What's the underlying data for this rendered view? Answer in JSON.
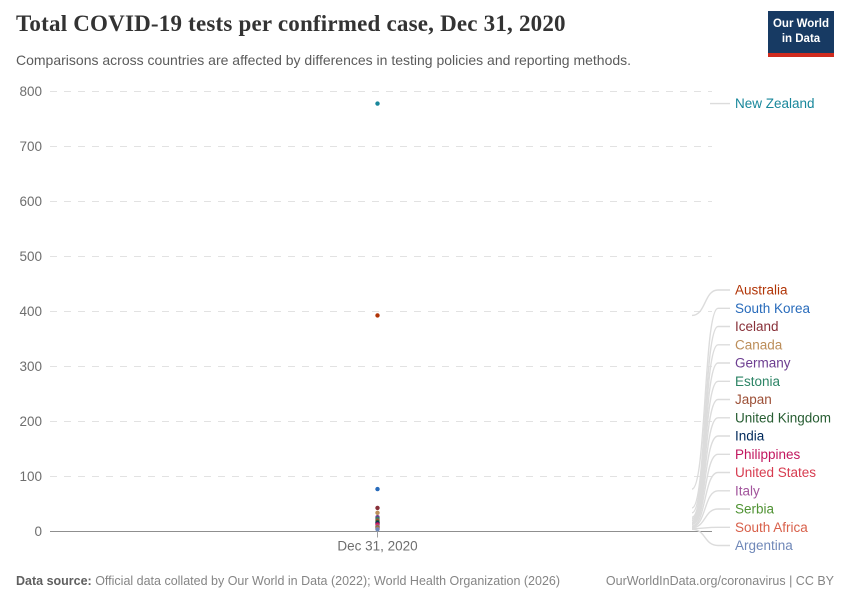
{
  "header": {
    "title": "Total COVID-19 tests per confirmed case, Dec 31, 2020",
    "subtitle": "Comparisons across countries are affected by differences in testing policies and reporting methods."
  },
  "logo": {
    "line1": "Our World",
    "line2": "in Data",
    "bg_color": "#173a63",
    "accent_color": "#d02b1e"
  },
  "footer": {
    "source_label": "Data source:",
    "source_text": " Official data collated by Our World in Data (2022); World Health Organization (2026)",
    "link_text": "OurWorldInData.org/coronavirus | CC BY"
  },
  "chart_data": {
    "type": "scatter",
    "title": "Total COVID-19 tests per confirmed case, Dec 31, 2020",
    "x_tick_label": "Dec 31, 2020",
    "xlabel": "",
    "ylabel": "",
    "ylim": [
      0,
      800
    ],
    "y_ticks": [
      0,
      100,
      200,
      300,
      400,
      500,
      600,
      700,
      800
    ],
    "grid": "dashed horizontal",
    "legend_position": "right-labels",
    "series": [
      {
        "name": "New Zealand",
        "value": 778,
        "color": "#18879b"
      },
      {
        "name": "Australia",
        "value": 393,
        "color": "#b13507"
      },
      {
        "name": "South Korea",
        "value": 77,
        "color": "#286bbb"
      },
      {
        "name": "Iceland",
        "value": 43,
        "color": "#883039"
      },
      {
        "name": "Canada",
        "value": 34,
        "color": "#bc8e5a"
      },
      {
        "name": "Germany",
        "value": 26,
        "color": "#6d3e91"
      },
      {
        "name": "Estonia",
        "value": 23,
        "color": "#2c8465"
      },
      {
        "name": "Japan",
        "value": 20,
        "color": "#9c4f36"
      },
      {
        "name": "United Kingdom",
        "value": 17,
        "color": "#275d32"
      },
      {
        "name": "India",
        "value": 15,
        "color": "#00295b"
      },
      {
        "name": "Philippines",
        "value": 13,
        "color": "#c2175f"
      },
      {
        "name": "United States",
        "value": 10,
        "color": "#d73c50"
      },
      {
        "name": "Italy",
        "value": 8.5,
        "color": "#a2559c"
      },
      {
        "name": "Serbia",
        "value": 7,
        "color": "#509334"
      },
      {
        "name": "South Africa",
        "value": 5.5,
        "color": "#d8604a"
      },
      {
        "name": "Argentina",
        "value": 4,
        "color": "#7088b8"
      }
    ]
  }
}
